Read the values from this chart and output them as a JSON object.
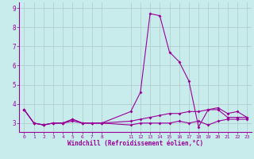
{
  "xlabel": "Windchill (Refroidissement éolien,°C)",
  "background_color": "#c8ecec",
  "line_color": "#990099",
  "grid_color": "#b0c8c8",
  "x_values": [
    0,
    1,
    2,
    3,
    4,
    5,
    6,
    7,
    8,
    11,
    12,
    13,
    14,
    15,
    16,
    17,
    18,
    19,
    20,
    21,
    22,
    23
  ],
  "line1_y": [
    3.7,
    3.0,
    2.9,
    3.0,
    3.0,
    3.2,
    3.0,
    3.0,
    3.0,
    3.6,
    4.6,
    8.7,
    8.6,
    6.7,
    6.2,
    5.2,
    2.8,
    3.7,
    3.8,
    3.5,
    3.6,
    3.3
  ],
  "line2_y": [
    3.7,
    3.0,
    2.9,
    3.0,
    3.0,
    3.2,
    3.0,
    3.0,
    3.0,
    3.1,
    3.2,
    3.3,
    3.4,
    3.5,
    3.5,
    3.6,
    3.6,
    3.7,
    3.7,
    3.3,
    3.3,
    3.3
  ],
  "line3_y": [
    3.7,
    3.0,
    2.9,
    3.0,
    3.0,
    3.1,
    3.0,
    3.0,
    3.0,
    2.9,
    3.0,
    3.0,
    3.0,
    3.0,
    3.1,
    3.0,
    3.1,
    2.9,
    3.1,
    3.2,
    3.2,
    3.2
  ],
  "ylim": [
    2.55,
    9.3
  ],
  "yticks": [
    3,
    4,
    5,
    6,
    7,
    8,
    9
  ],
  "xtick_positions": [
    0,
    1,
    2,
    3,
    4,
    5,
    6,
    7,
    8,
    11,
    12,
    13,
    14,
    15,
    16,
    17,
    18,
    19,
    20,
    21,
    22,
    23
  ],
  "xtick_labels": [
    "0",
    "1",
    "2",
    "3",
    "4",
    "5",
    "6",
    "7",
    "8",
    "11",
    "12",
    "13",
    "14",
    "15",
    "16",
    "17",
    "18",
    "19",
    "20",
    "21",
    "22",
    "23"
  ],
  "xlim": [
    -0.5,
    23.5
  ],
  "figsize": [
    3.2,
    2.0
  ],
  "dpi": 100
}
